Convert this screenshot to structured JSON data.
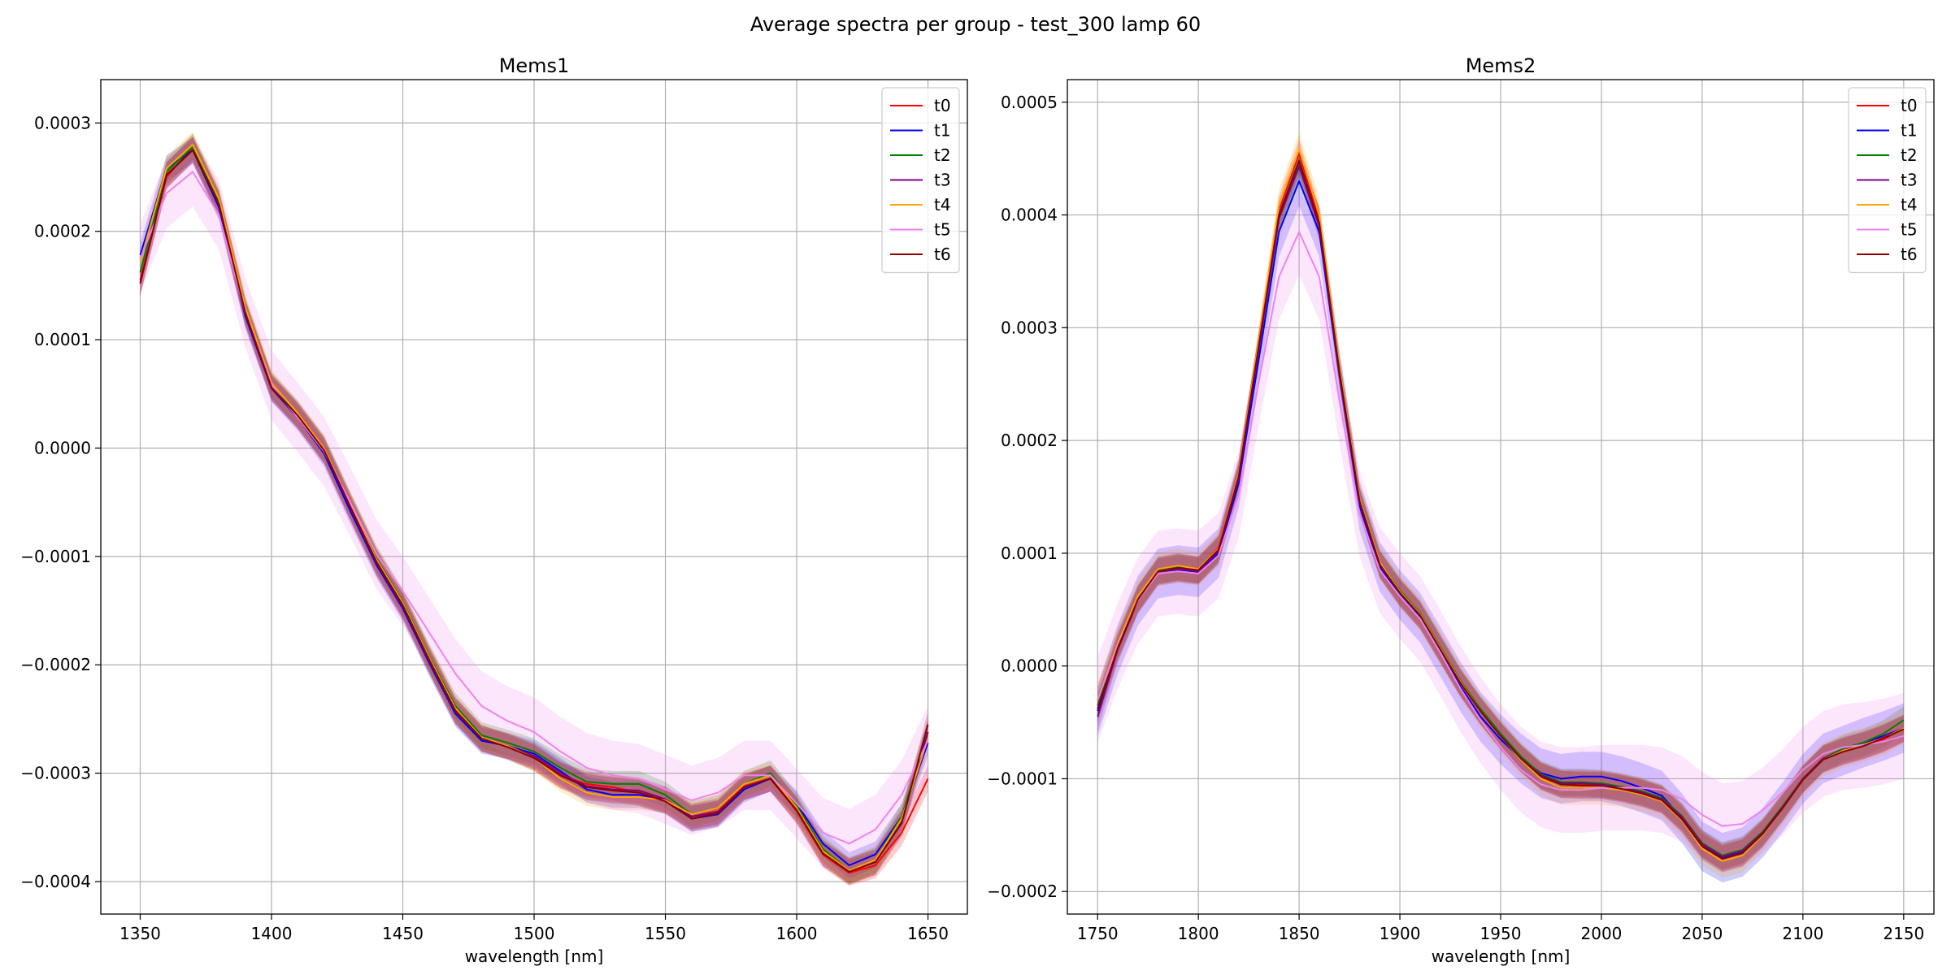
{
  "figure": {
    "title": "Average spectra per group - test_300 lamp 60"
  },
  "colors": {
    "t0": "#ff0000",
    "t1": "#0000ff",
    "t2": "#008000",
    "t3": "#800080",
    "t4": "#ffa500",
    "t5": "#ee82ee",
    "t6": "#8b0000",
    "grid": "#b0b0b0"
  },
  "chart_data": [
    {
      "type": "line",
      "title": "Mems1",
      "xlabel": "wavelength [nm]",
      "ylabel": "",
      "xlim": [
        1335,
        1665
      ],
      "ylim": [
        -0.00043,
        0.00034
      ],
      "xticks": [
        1350,
        1400,
        1450,
        1500,
        1550,
        1600,
        1650
      ],
      "xtick_labels": [
        "1350",
        "1400",
        "1450",
        "1500",
        "1550",
        "1600",
        "1650"
      ],
      "yticks": [
        -0.0004,
        -0.0003,
        -0.0002,
        -0.0001,
        0.0,
        0.0001,
        0.0002,
        0.0003
      ],
      "ytick_labels": [
        "−0.0004",
        "−0.0003",
        "−0.0002",
        "−0.0001",
        "0.0000",
        "0.0001",
        "0.0002",
        "0.0003"
      ],
      "grid": true,
      "legend": "top-right",
      "x": [
        1350,
        1360,
        1370,
        1380,
        1390,
        1400,
        1410,
        1420,
        1430,
        1440,
        1450,
        1460,
        1470,
        1480,
        1490,
        1500,
        1510,
        1520,
        1530,
        1540,
        1550,
        1560,
        1570,
        1580,
        1590,
        1600,
        1610,
        1620,
        1630,
        1640,
        1650
      ],
      "series": [
        {
          "name": "t0",
          "band": 1.2e-05,
          "values": [
            0.000155,
            0.00025,
            0.000278,
            0.000225,
            0.000125,
            5.8e-05,
            3e-05,
            -2e-06,
            -5.5e-05,
            -0.000105,
            -0.000145,
            -0.000195,
            -0.000242,
            -0.000268,
            -0.000275,
            -0.000285,
            -0.000302,
            -0.00031,
            -0.000313,
            -0.000318,
            -0.000325,
            -0.00034,
            -0.000335,
            -0.000312,
            -0.000305,
            -0.000335,
            -0.000375,
            -0.000392,
            -0.000385,
            -0.000355,
            -0.000305
          ]
        },
        {
          "name": "t1",
          "band": 1.2e-05,
          "values": [
            0.000178,
            0.000258,
            0.000275,
            0.000222,
            0.000122,
            5.5e-05,
            2.8e-05,
            -5e-06,
            -5.8e-05,
            -0.000108,
            -0.000148,
            -0.000198,
            -0.000245,
            -0.00027,
            -0.000275,
            -0.000282,
            -0.000298,
            -0.000315,
            -0.00032,
            -0.00032,
            -0.000325,
            -0.000342,
            -0.000338,
            -0.000315,
            -0.000305,
            -0.000328,
            -0.000365,
            -0.000385,
            -0.000375,
            -0.00034,
            -0.000272
          ]
        },
        {
          "name": "t2",
          "band": 1.2e-05,
          "values": [
            0.000162,
            0.000255,
            0.000278,
            0.000228,
            0.000128,
            5.8e-05,
            3.2e-05,
            0.0,
            -5.2e-05,
            -0.000102,
            -0.000142,
            -0.000192,
            -0.000238,
            -0.000265,
            -0.000272,
            -0.00028,
            -0.000295,
            -0.000308,
            -0.00031,
            -0.00031,
            -0.00032,
            -0.000338,
            -0.000332,
            -0.00031,
            -0.0003,
            -0.00033,
            -0.00037,
            -0.00039,
            -0.00038,
            -0.00034,
            -0.000262
          ]
        },
        {
          "name": "t3",
          "band": 1.2e-05,
          "values": [
            0.000152,
            0.000252,
            0.000275,
            0.000225,
            0.000125,
            5.5e-05,
            3e-05,
            -2e-06,
            -5.5e-05,
            -0.000106,
            -0.000146,
            -0.000196,
            -0.000243,
            -0.000268,
            -0.000275,
            -0.000284,
            -0.0003,
            -0.000312,
            -0.000315,
            -0.000316,
            -0.000324,
            -0.00034,
            -0.000336,
            -0.000313,
            -0.000305,
            -0.000333,
            -0.000373,
            -0.00039,
            -0.000382,
            -0.000345,
            -0.000262
          ]
        },
        {
          "name": "t4",
          "band": 1.2e-05,
          "values": [
            0.000172,
            0.000258,
            0.00028,
            0.00023,
            0.00013,
            6e-05,
            3.2e-05,
            0.0,
            -5.2e-05,
            -0.000103,
            -0.000143,
            -0.000193,
            -0.00024,
            -0.000267,
            -0.000275,
            -0.000286,
            -0.000305,
            -0.000318,
            -0.000322,
            -0.000322,
            -0.000325,
            -0.000338,
            -0.000332,
            -0.00031,
            -0.000302,
            -0.000332,
            -0.000372,
            -0.00039,
            -0.00038,
            -0.000342,
            -0.000268
          ]
        },
        {
          "name": "t5",
          "band": 3.2e-05,
          "values": [
            0.000175,
            0.000235,
            0.000255,
            0.000215,
            0.000125,
            5.8e-05,
            2.8e-05,
            -3e-06,
            -5e-05,
            -9.8e-05,
            -0.000132,
            -0.00017,
            -0.000208,
            -0.000238,
            -0.000252,
            -0.000262,
            -0.00028,
            -0.000295,
            -0.000302,
            -0.000305,
            -0.000315,
            -0.000325,
            -0.000318,
            -0.000302,
            -0.000302,
            -0.000328,
            -0.000355,
            -0.000365,
            -0.000352,
            -0.00032,
            -0.00027
          ]
        },
        {
          "name": "t6",
          "band": 1.2e-05,
          "values": [
            0.000152,
            0.000252,
            0.000275,
            0.000225,
            0.000125,
            5.6e-05,
            3e-05,
            -2e-06,
            -5.4e-05,
            -0.000105,
            -0.000145,
            -0.000195,
            -0.000242,
            -0.000268,
            -0.000276,
            -0.000286,
            -0.000302,
            -0.000313,
            -0.000316,
            -0.000318,
            -0.000326,
            -0.000342,
            -0.000337,
            -0.000313,
            -0.000305,
            -0.000334,
            -0.000374,
            -0.000391,
            -0.000382,
            -0.000346,
            -0.000255
          ]
        }
      ]
    },
    {
      "type": "line",
      "title": "Mems2",
      "xlabel": "wavelength [nm]",
      "ylabel": "",
      "xlim": [
        1735,
        2165
      ],
      "ylim": [
        -0.00022,
        0.00052
      ],
      "xticks": [
        1750,
        1800,
        1850,
        1900,
        1950,
        2000,
        2050,
        2100,
        2150
      ],
      "xtick_labels": [
        "1750",
        "1800",
        "1850",
        "1900",
        "1950",
        "2000",
        "2050",
        "2100",
        "2150"
      ],
      "yticks": [
        -0.0002,
        -0.0001,
        0.0,
        0.0001,
        0.0002,
        0.0003,
        0.0004,
        0.0005
      ],
      "ytick_labels": [
        "−0.0002",
        "−0.0001",
        "0.0000",
        "0.0001",
        "0.0002",
        "0.0003",
        "0.0004",
        "0.0005"
      ],
      "grid": true,
      "legend": "top-right",
      "x": [
        1750,
        1760,
        1770,
        1780,
        1790,
        1800,
        1810,
        1820,
        1830,
        1840,
        1850,
        1860,
        1870,
        1880,
        1890,
        1900,
        1910,
        1920,
        1930,
        1940,
        1950,
        1960,
        1970,
        1980,
        1990,
        2000,
        2010,
        2020,
        2030,
        2040,
        2050,
        2060,
        2070,
        2080,
        2090,
        2100,
        2110,
        2120,
        2130,
        2140,
        2150
      ],
      "series": [
        {
          "name": "t0",
          "band": 1.2e-05,
          "values": [
            -3e-05,
            2e-05,
            6e-05,
            8.5e-05,
            8.8e-05,
            8.5e-05,
            0.000105,
            0.00017,
            0.000285,
            0.000405,
            0.000455,
            0.000395,
            0.00026,
            0.000145,
            9e-05,
            6.5e-05,
            4.5e-05,
            1.5e-05,
            -1.5e-05,
            -4e-05,
            -6.2e-05,
            -8.2e-05,
            -9.8e-05,
            -0.000105,
            -0.000105,
            -0.000105,
            -0.000108,
            -0.000112,
            -0.000118,
            -0.000135,
            -0.000158,
            -0.00017,
            -0.000165,
            -0.000148,
            -0.000125,
            -0.0001,
            -8.2e-05,
            -7.5e-05,
            -7e-05,
            -6.5e-05,
            -5.5e-05
          ]
        },
        {
          "name": "t1",
          "band": 2.2e-05,
          "values": [
            -4e-05,
            1.5e-05,
            5.8e-05,
            8.2e-05,
            8.5e-05,
            8.3e-05,
            0.0001,
            0.000162,
            0.000272,
            0.000385,
            0.00043,
            0.000385,
            0.000258,
            0.000142,
            8.8e-05,
            6.3e-05,
            4.3e-05,
            1.3e-05,
            -1.8e-05,
            -4.5e-05,
            -6.5e-05,
            -8.2e-05,
            -9.5e-05,
            -0.0001,
            -9.8e-05,
            -9.8e-05,
            -0.000102,
            -0.000108,
            -0.000115,
            -0.000135,
            -0.00016,
            -0.00017,
            -0.000165,
            -0.000148,
            -0.000125,
            -0.0001,
            -8.2e-05,
            -7.5e-05,
            -6.8e-05,
            -6.2e-05,
            -5.5e-05
          ]
        },
        {
          "name": "t2",
          "band": 1.2e-05,
          "values": [
            -3.5e-05,
            1.8e-05,
            6e-05,
            8.5e-05,
            8.8e-05,
            8.5e-05,
            0.000103,
            0.000168,
            0.000283,
            0.000398,
            0.000445,
            0.000392,
            0.000262,
            0.000148,
            9.2e-05,
            6.7e-05,
            4.7e-05,
            1.7e-05,
            -1.3e-05,
            -3.8e-05,
            -6e-05,
            -8e-05,
            -9.6e-05,
            -0.000103,
            -0.000103,
            -0.000104,
            -0.000107,
            -0.000111,
            -0.000117,
            -0.000133,
            -0.000157,
            -0.000168,
            -0.000163,
            -0.000147,
            -0.000124,
            -0.0001,
            -8.2e-05,
            -7.3e-05,
            -6.8e-05,
            -6e-05,
            -4.8e-05
          ]
        },
        {
          "name": "t3",
          "band": 1.2e-05,
          "values": [
            -4.5e-05,
            1.5e-05,
            5.8e-05,
            8.3e-05,
            8.6e-05,
            8.4e-05,
            0.000102,
            0.000167,
            0.000282,
            0.000397,
            0.000443,
            0.00039,
            0.00026,
            0.000146,
            9e-05,
            6.5e-05,
            4.5e-05,
            1.5e-05,
            -1.5e-05,
            -4e-05,
            -6.2e-05,
            -8.2e-05,
            -9.7e-05,
            -0.000104,
            -0.000104,
            -0.000105,
            -0.000108,
            -0.000112,
            -0.000118,
            -0.000134,
            -0.000158,
            -0.000169,
            -0.000164,
            -0.000148,
            -0.000125,
            -0.0001,
            -8.2e-05,
            -7.5e-05,
            -7e-05,
            -6.3e-05,
            -5.5e-05
          ]
        },
        {
          "name": "t4",
          "band": 1.5e-05,
          "values": [
            -3e-05,
            2e-05,
            6.2e-05,
            8.6e-05,
            8.9e-05,
            8.6e-05,
            0.000104,
            0.00017,
            0.000288,
            0.000408,
            0.000458,
            0.0004,
            0.000265,
            0.000148,
            9.2e-05,
            6.6e-05,
            4.6e-05,
            1.6e-05,
            -1.4e-05,
            -4e-05,
            -6.2e-05,
            -8.3e-05,
            -0.0001,
            -0.000108,
            -0.000108,
            -0.000108,
            -0.00011,
            -0.000114,
            -0.00012,
            -0.000137,
            -0.000162,
            -0.000173,
            -0.000168,
            -0.00015,
            -0.000126,
            -0.000101,
            -8.3e-05,
            -7.5e-05,
            -7e-05,
            -6.4e-05,
            -5.5e-05
          ]
        },
        {
          "name": "t5",
          "band": 3.8e-05,
          "values": [
            -3e-05,
            1.8e-05,
            5.8e-05,
            8.2e-05,
            8.4e-05,
            8.2e-05,
            9.8e-05,
            0.000152,
            0.000252,
            0.000345,
            0.000385,
            0.000345,
            0.000235,
            0.000135,
            8.5e-05,
            6.2e-05,
            4.2e-05,
            1.2e-05,
            -2e-05,
            -4.8e-05,
            -7.2e-05,
            -9.2e-05,
            -0.000105,
            -0.00011,
            -0.00011,
            -0.000108,
            -0.000108,
            -0.000108,
            -0.00011,
            -0.000118,
            -0.000132,
            -0.000142,
            -0.00014,
            -0.000128,
            -0.000112,
            -9.2e-05,
            -7.8e-05,
            -7.2e-05,
            -7e-05,
            -6.7e-05,
            -6.2e-05
          ]
        },
        {
          "name": "t6",
          "band": 1.2e-05,
          "values": [
            -3.8e-05,
            1.6e-05,
            5.9e-05,
            8.4e-05,
            8.7e-05,
            8.5e-05,
            0.000103,
            0.000168,
            0.000284,
            0.0004,
            0.000448,
            0.000393,
            0.000261,
            0.000146,
            9e-05,
            6.5e-05,
            4.5e-05,
            1.5e-05,
            -1.5e-05,
            -4e-05,
            -6.2e-05,
            -8.2e-05,
            -9.8e-05,
            -0.000105,
            -0.000106,
            -0.000106,
            -0.000109,
            -0.000113,
            -0.000119,
            -0.000136,
            -0.00016,
            -0.000171,
            -0.000166,
            -0.000149,
            -0.000126,
            -0.000101,
            -8.3e-05,
            -7.6e-05,
            -7.1e-05,
            -6.4e-05,
            -5.6e-05
          ]
        }
      ]
    }
  ]
}
